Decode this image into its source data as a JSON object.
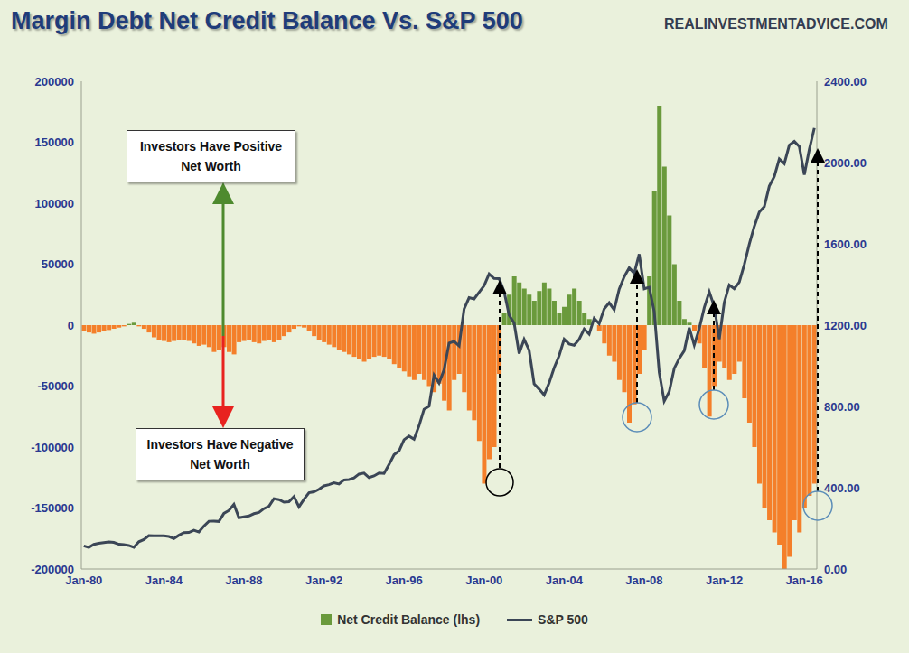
{
  "chart_data": {
    "type": "bar",
    "title": "Margin Debt Net Credit Balance Vs. S&P 500",
    "annotations": [
      "REALINVESTMENTADVICE.COM",
      "Investors Have Positive Net Worth",
      "Investors Have Negative Net Worth"
    ],
    "categories": [
      "Jan-80",
      null,
      null,
      null,
      null,
      null,
      null,
      null,
      null,
      null,
      null,
      null,
      null,
      null,
      null,
      null,
      "Jan-84",
      null,
      null,
      null,
      null,
      null,
      null,
      null,
      null,
      null,
      null,
      null,
      null,
      null,
      null,
      null,
      "Jan-88",
      null,
      null,
      null,
      null,
      null,
      null,
      null,
      null,
      null,
      null,
      null,
      null,
      null,
      null,
      null,
      "Jan-92",
      null,
      null,
      null,
      null,
      null,
      null,
      null,
      null,
      null,
      null,
      null,
      null,
      null,
      null,
      null,
      "Jan-96",
      null,
      null,
      null,
      null,
      null,
      null,
      null,
      null,
      null,
      null,
      null,
      null,
      null,
      null,
      null,
      "Jan-00",
      null,
      null,
      null,
      null,
      null,
      null,
      null,
      null,
      null,
      null,
      null,
      null,
      null,
      null,
      null,
      "Jan-04",
      null,
      null,
      null,
      null,
      null,
      null,
      null,
      null,
      null,
      null,
      null,
      null,
      null,
      null,
      null,
      "Jan-08",
      null,
      null,
      null,
      null,
      null,
      null,
      null,
      null,
      null,
      null,
      null,
      null,
      null,
      null,
      null,
      "Jan-12",
      null,
      null,
      null,
      null,
      null,
      null,
      null,
      null,
      null,
      null,
      null,
      null,
      null,
      null,
      null,
      "Jan-16",
      null,
      null
    ],
    "series": [
      {
        "name": "Net Credit Balance (lhs)",
        "type": "bar",
        "color": "#6a9a3c",
        "colors": [
          "#f47f2a",
          "#f47f2a",
          "#f47f2a",
          "#f47f2a",
          "#f47f2a",
          "#f47f2a",
          "#f47f2a",
          "#f47f2a",
          "#f47f2a",
          "#6a9a3c",
          "#6a9a3c",
          "#f47f2a",
          "#f47f2a",
          "#f47f2a",
          "#f47f2a",
          "#f47f2a",
          "#f47f2a",
          "#f47f2a",
          "#f47f2a",
          "#f47f2a",
          "#f47f2a",
          "#f47f2a",
          "#f47f2a",
          "#f47f2a",
          "#f47f2a",
          "#f47f2a",
          "#f47f2a",
          "#f47f2a",
          "#f47f2a",
          "#f47f2a",
          "#f47f2a",
          "#f47f2a",
          "#f47f2a",
          "#f47f2a",
          "#f47f2a",
          "#f47f2a",
          "#f47f2a",
          "#f47f2a",
          "#f47f2a",
          "#f47f2a",
          "#f47f2a",
          "#f47f2a",
          "#f47f2a",
          "#f47f2a",
          "#f47f2a",
          "#f47f2a",
          "#f47f2a",
          "#f47f2a",
          "#f47f2a",
          "#f47f2a",
          "#f47f2a",
          "#f47f2a",
          "#f47f2a",
          "#f47f2a",
          "#f47f2a",
          "#f47f2a",
          "#f47f2a",
          "#f47f2a",
          "#f47f2a",
          "#f47f2a",
          "#f47f2a",
          "#f47f2a",
          "#f47f2a",
          "#f47f2a",
          "#f47f2a",
          "#f47f2a",
          "#f47f2a",
          "#f47f2a",
          "#f47f2a",
          "#f47f2a",
          "#f47f2a",
          "#f47f2a",
          "#f47f2a",
          "#f47f2a",
          "#f47f2a",
          "#f47f2a",
          "#f47f2a",
          "#f47f2a",
          "#f47f2a",
          "#f47f2a",
          "#f47f2a",
          "#f47f2a",
          "#f47f2a",
          "#f47f2a",
          "#6a9a3c",
          "#6a9a3c",
          "#6a9a3c",
          "#6a9a3c",
          "#6a9a3c",
          "#6a9a3c",
          "#6a9a3c",
          "#6a9a3c",
          "#6a9a3c",
          "#6a9a3c",
          "#6a9a3c",
          "#6a9a3c",
          "#6a9a3c",
          "#6a9a3c",
          "#6a9a3c",
          "#6a9a3c",
          "#6a9a3c",
          "#6a9a3c",
          "#f47f2a",
          "#f47f2a",
          "#f47f2a",
          "#f47f2a",
          "#f47f2a",
          "#f47f2a",
          "#f47f2a",
          "#f47f2a",
          "#f47f2a",
          "#f47f2a",
          "#f47f2a",
          "#6a9a3c",
          "#6a9a3c",
          "#6a9a3c",
          "#6a9a3c",
          "#6a9a3c",
          "#6a9a3c",
          "#6a9a3c",
          "#6a9a3c",
          "#6a9a3c",
          "#f47f2a",
          "#f47f2a",
          "#f47f2a",
          "#f47f2a",
          "#f47f2a",
          "#f47f2a",
          "#f47f2a",
          "#f47f2a",
          "#f47f2a",
          "#f47f2a",
          "#f47f2a",
          "#f47f2a",
          "#f47f2a",
          "#f47f2a",
          "#f47f2a",
          "#f47f2a",
          "#f47f2a",
          "#f47f2a",
          "#f47f2a",
          "#f47f2a",
          "#f47f2a",
          "#f47f2a",
          "#f47f2a",
          "#f47f2a",
          "#f47f2a"
        ],
        "values": [
          -5000,
          -6000,
          -7000,
          -6000,
          -5000,
          -4000,
          -3000,
          -2000,
          -1000,
          1000,
          2000,
          -1000,
          -3000,
          -6000,
          -10000,
          -12000,
          -13000,
          -14000,
          -13000,
          -12000,
          -12000,
          -13000,
          -15000,
          -17000,
          -16000,
          -18000,
          -22000,
          -20000,
          -18000,
          -22000,
          -24000,
          -14000,
          -13000,
          -12000,
          -14000,
          -15000,
          -13000,
          -12000,
          -14000,
          -12000,
          -9000,
          -6000,
          -3000,
          -1000,
          -2000,
          -5000,
          -9000,
          -12000,
          -14000,
          -16000,
          -18000,
          -20000,
          -22000,
          -24000,
          -26000,
          -28000,
          -30000,
          -28000,
          -26000,
          -25000,
          -26000,
          -28000,
          -32000,
          -35000,
          -38000,
          -42000,
          -45000,
          -40000,
          -45000,
          -50000,
          -55000,
          -48000,
          -62000,
          -70000,
          -45000,
          -40000,
          -55000,
          -70000,
          -78000,
          -95000,
          -130000,
          -110000,
          -100000,
          -40000,
          10000,
          25000,
          40000,
          35000,
          30000,
          25000,
          20000,
          28000,
          35000,
          30000,
          20000,
          10000,
          15000,
          25000,
          30000,
          20000,
          10000,
          5000,
          0,
          -5000,
          -15000,
          -25000,
          -30000,
          -45000,
          -55000,
          -80000,
          -65000,
          -40000,
          -20000,
          40000,
          110000,
          180000,
          130000,
          90000,
          50000,
          20000,
          5000,
          2000,
          -5000,
          -15000,
          -35000,
          -75000,
          -50000,
          -30000,
          -35000,
          -45000,
          -40000,
          -30000,
          -60000,
          -80000,
          -100000,
          -130000,
          -150000,
          -160000,
          -170000,
          -180000,
          -200000,
          -190000,
          -160000,
          -170000,
          -150000,
          -140000,
          -130000
        ]
      },
      {
        "name": "S&P 500",
        "type": "line",
        "color": "#3b4656",
        "axis": "y2",
        "values": [
          114,
          106,
          121,
          127,
          130,
          133,
          131,
          122,
          120,
          116,
          107,
          134,
          145,
          164,
          163,
          163,
          163,
          160,
          150,
          166,
          179,
          180,
          191,
          182,
          211,
          235,
          236,
          234,
          274,
          288,
          318,
          252,
          257,
          261,
          272,
          278,
          297,
          309,
          346,
          341,
          329,
          331,
          356,
          306,
          343,
          375,
          380,
          392,
          409,
          415,
          424,
          418,
          438,
          440,
          448,
          467,
          472,
          450,
          458,
          472,
          470,
          514,
          562,
          581,
          636,
          654,
          639,
          705,
          786,
          801,
          954,
          915,
          980,
          1112,
          1120,
          1098,
          1279,
          1335,
          1329,
          1362,
          1394,
          1452,
          1430,
          1429,
          1366,
          1249,
          1211,
          1060,
          1130,
          1077,
          911,
          885,
          856,
          916,
          990,
          1050,
          1131,
          1107,
          1101,
          1130,
          1181,
          1156,
          1234,
          1207,
          1280,
          1310,
          1276,
          1377,
          1438,
          1482,
          1455,
          1549,
          1379,
          1386,
          1267,
          968,
          826,
          872,
          987,
          1036,
          1074,
          1187,
          1102,
          1183,
          1286,
          1364,
          1292,
          1131,
          1312,
          1398,
          1379,
          1412,
          1498,
          1598,
          1686,
          1757,
          1783,
          1884,
          1931,
          2018,
          1995,
          2086,
          2104,
          2079,
          1940,
          2065,
          2170
        ]
      }
    ],
    "ylim": [
      -200000,
      200000
    ],
    "yticks": [
      -200000,
      -150000,
      -100000,
      -50000,
      0,
      50000,
      100000,
      150000,
      200000
    ],
    "y2lim": [
      0,
      2400
    ],
    "y2ticks": [
      {
        "value": 0,
        "label": "0.00"
      },
      {
        "value": 400,
        "label": "400.00"
      },
      {
        "value": 800,
        "label": "800.00"
      },
      {
        "value": 1200,
        "label": "1200.00"
      },
      {
        "value": 1600,
        "label": "1600.00"
      },
      {
        "value": 2000,
        "label": "2000.00"
      },
      {
        "value": 2400,
        "label": "2400.00"
      }
    ],
    "grid": false,
    "legend": "bottom"
  }
}
